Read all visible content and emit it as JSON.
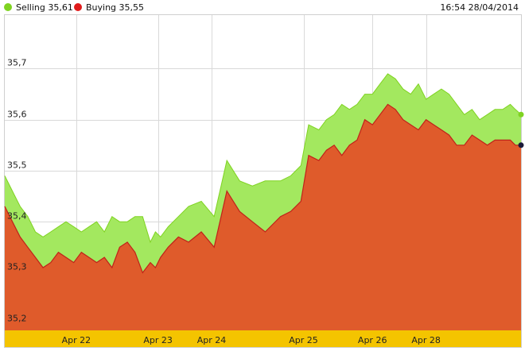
{
  "header": {
    "legend": [
      {
        "label": "Selling 35,61",
        "color": "#7fd321"
      },
      {
        "label": "Buying 35,55",
        "color": "#e01b1b"
      }
    ],
    "timestamp": "16:54 28/04/2014"
  },
  "chart_data": {
    "type": "area",
    "title": "",
    "xlabel": "",
    "ylabel": "",
    "ylim": [
      35.187,
      35.805
    ],
    "grid": true,
    "legend_position": "top-left",
    "y_ticks": [
      {
        "value": 35.2,
        "label": "35,2"
      },
      {
        "value": 35.3,
        "label": "35,3"
      },
      {
        "value": 35.4,
        "label": "35,4"
      },
      {
        "value": 35.5,
        "label": "35,5"
      },
      {
        "value": 35.6,
        "label": "35,6"
      },
      {
        "value": 35.7,
        "label": "35,7"
      }
    ],
    "x_ticks": [
      {
        "x": 20.55,
        "label": "Apr 22"
      },
      {
        "x": 22.15,
        "label": "Apr 23"
      },
      {
        "x": 23.2,
        "label": "Apr 24"
      },
      {
        "x": 25.0,
        "label": "Apr 25"
      },
      {
        "x": 26.35,
        "label": "Apr 26"
      },
      {
        "x": 27.4,
        "label": "Apr 28"
      }
    ],
    "colors": {
      "selling_fill": "#a3e85f",
      "selling_line": "#7fd321",
      "buying_fill": "#df5b2b",
      "buying_line": "#c0221a",
      "x_band": "#f4c400",
      "grid": "#d9d9d9"
    },
    "x_range": [
      19.15,
      29.26
    ],
    "series": [
      {
        "name": "Selling",
        "x": [
          19.15,
          19.3,
          19.45,
          19.6,
          19.75,
          19.9,
          20.05,
          20.2,
          20.35,
          20.5,
          20.65,
          20.8,
          20.95,
          21.1,
          21.25,
          21.4,
          21.55,
          21.7,
          21.85,
          22.0,
          22.1,
          22.2,
          22.35,
          22.55,
          22.75,
          23.0,
          23.25,
          23.5,
          23.75,
          24.0,
          24.25,
          24.55,
          24.75,
          24.85,
          24.95,
          25.1,
          25.3,
          25.45,
          25.6,
          25.75,
          25.9,
          26.05,
          26.2,
          26.35,
          26.5,
          26.65,
          26.8,
          26.95,
          27.1,
          27.25,
          27.4,
          27.55,
          27.7,
          27.85,
          28.0,
          28.15,
          28.3,
          28.45,
          28.6,
          28.75,
          28.9,
          29.05,
          29.15,
          29.26
        ],
        "y": [
          35.49,
          35.46,
          35.43,
          35.41,
          35.38,
          35.37,
          35.38,
          35.39,
          35.4,
          35.39,
          35.38,
          35.39,
          35.4,
          35.38,
          35.41,
          35.4,
          35.4,
          35.41,
          35.41,
          35.36,
          35.38,
          35.37,
          35.39,
          35.41,
          35.43,
          35.44,
          35.41,
          35.52,
          35.48,
          35.47,
          35.48,
          35.48,
          35.49,
          35.5,
          35.51,
          35.59,
          35.58,
          35.6,
          35.61,
          35.63,
          35.62,
          35.63,
          35.65,
          35.65,
          35.67,
          35.69,
          35.68,
          35.66,
          35.65,
          35.67,
          35.64,
          35.65,
          35.66,
          35.65,
          35.63,
          35.61,
          35.62,
          35.6,
          35.61,
          35.62,
          35.62,
          35.63,
          35.62,
          35.61
        ]
      },
      {
        "name": "Buying",
        "x": [
          19.15,
          19.3,
          19.45,
          19.6,
          19.75,
          19.9,
          20.05,
          20.2,
          20.35,
          20.5,
          20.65,
          20.8,
          20.95,
          21.1,
          21.25,
          21.4,
          21.55,
          21.7,
          21.85,
          22.0,
          22.1,
          22.2,
          22.35,
          22.55,
          22.75,
          23.0,
          23.25,
          23.5,
          23.75,
          24.0,
          24.25,
          24.55,
          24.75,
          24.85,
          24.95,
          25.1,
          25.3,
          25.45,
          25.6,
          25.75,
          25.9,
          26.05,
          26.2,
          26.35,
          26.5,
          26.65,
          26.8,
          26.95,
          27.1,
          27.25,
          27.4,
          27.55,
          27.7,
          27.85,
          28.0,
          28.15,
          28.3,
          28.45,
          28.6,
          28.75,
          28.9,
          29.05,
          29.15,
          29.26
        ],
        "y": [
          35.43,
          35.4,
          35.37,
          35.35,
          35.33,
          35.31,
          35.32,
          35.34,
          35.33,
          35.32,
          35.34,
          35.33,
          35.32,
          35.33,
          35.31,
          35.35,
          35.36,
          35.34,
          35.3,
          35.32,
          35.31,
          35.33,
          35.35,
          35.37,
          35.36,
          35.38,
          35.35,
          35.46,
          35.42,
          35.4,
          35.38,
          35.41,
          35.42,
          35.43,
          35.44,
          35.53,
          35.52,
          35.54,
          35.55,
          35.53,
          35.55,
          35.56,
          35.6,
          35.59,
          35.61,
          35.63,
          35.62,
          35.6,
          35.59,
          35.58,
          35.6,
          35.59,
          35.58,
          35.57,
          35.55,
          35.55,
          35.57,
          35.56,
          35.55,
          35.56,
          35.56,
          35.56,
          35.55,
          35.55
        ]
      }
    ]
  }
}
